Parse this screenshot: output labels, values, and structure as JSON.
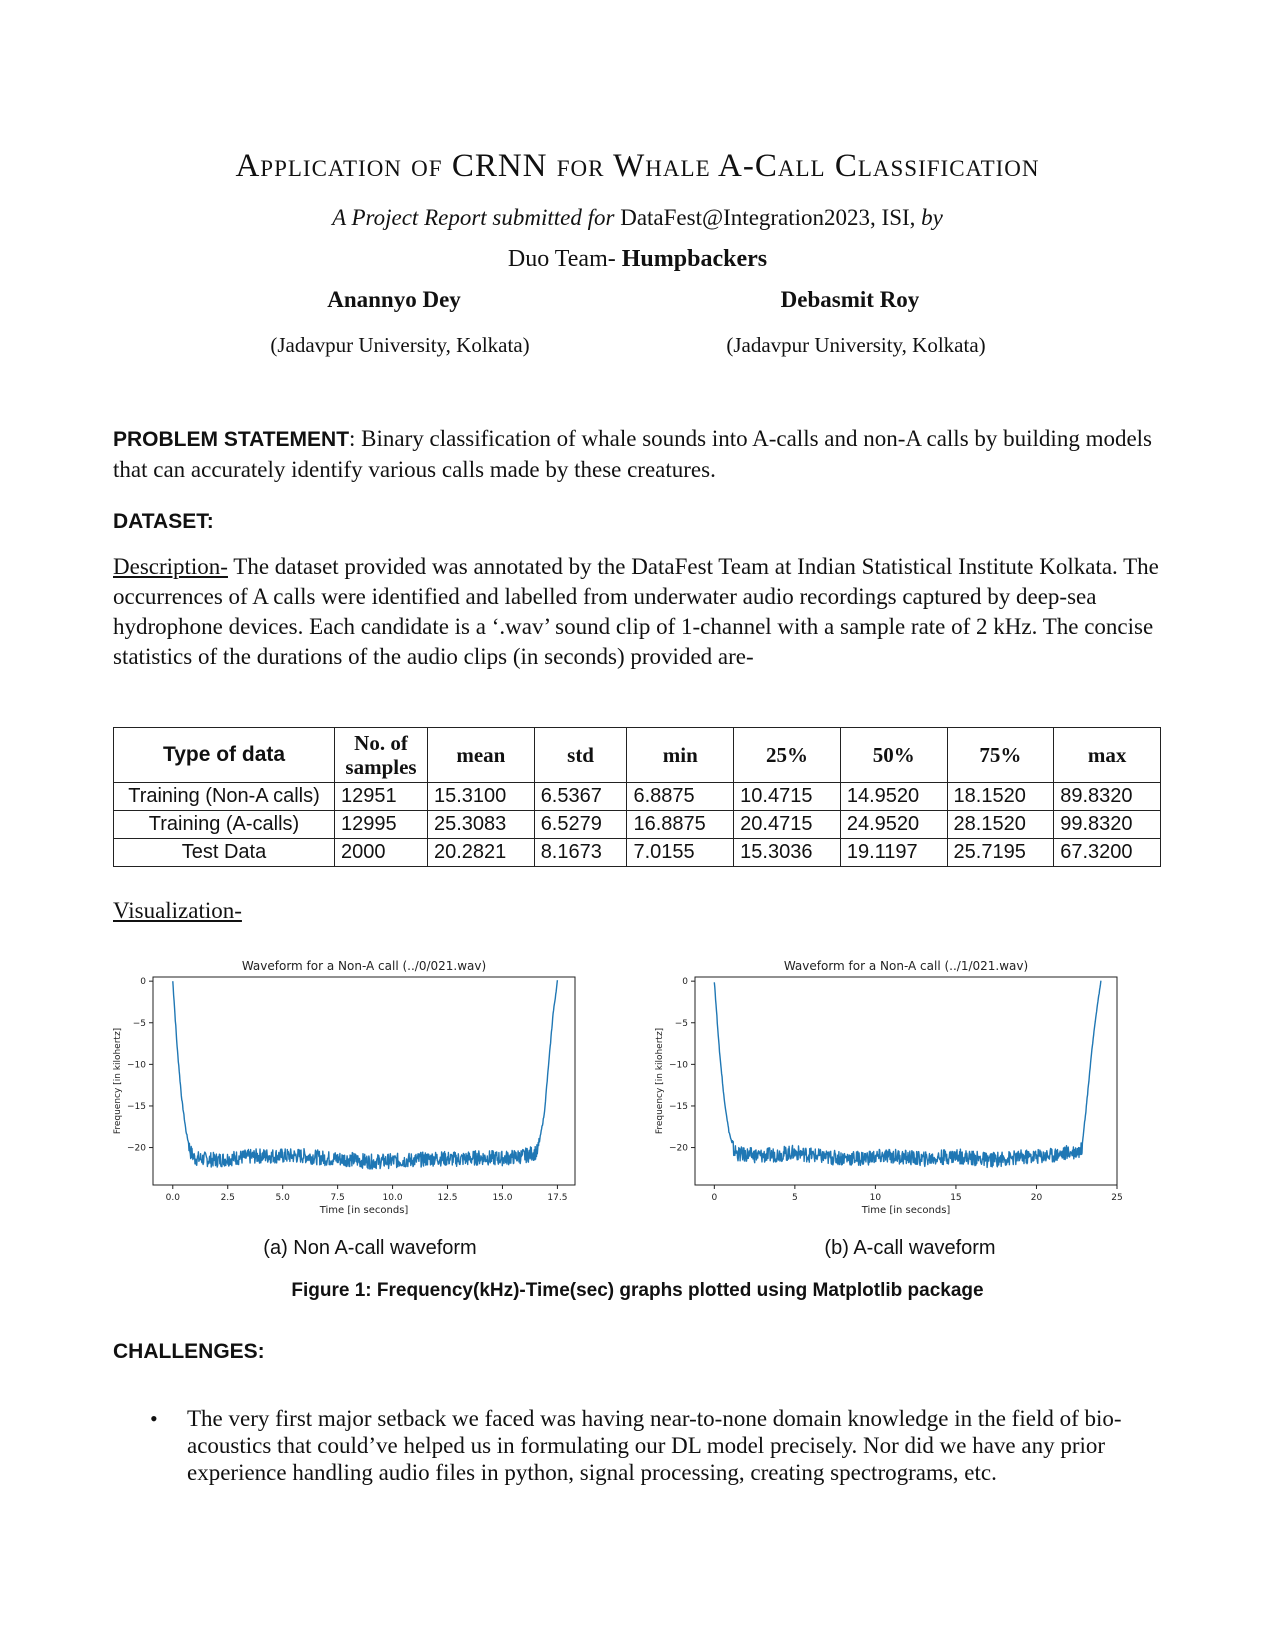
{
  "title": "Application of CRNN for Whale A-Call Classification",
  "subtitle": {
    "italic": "A Project Report submitted for",
    "plain": "DataFest@Integration2023, ISI,",
    "italic2": "by"
  },
  "team": {
    "prefix": "Duo Team-",
    "name": "Humpbackers"
  },
  "authors": [
    {
      "name": "Anannyo Dey",
      "affiliation": "(Jadavpur University, Kolkata)"
    },
    {
      "name": "Debasmit Roy",
      "affiliation": "(Jadavpur University, Kolkata)"
    }
  ],
  "problem": {
    "heading": "PROBLEM STATEMENT",
    "text": ": Binary classification of whale sounds into A-calls and non-A calls by building models that can accurately identify various calls made by these creatures."
  },
  "dataset": {
    "heading": "DATASET:",
    "desc_label": "Description-",
    "desc_text": " The dataset provided was annotated by the DataFest Team at Indian Statistical Institute Kolkata. The occurrences of A calls were identified and labelled from underwater audio recordings captured by deep-sea hydrophone devices. Each candidate is a ‘.wav’ sound clip of 1-channel with a sample rate of 2 kHz. The concise statistics of the durations of the audio clips (in seconds) provided are-"
  },
  "table": {
    "headers": [
      "Type of data",
      "No. of samples",
      "mean",
      "std",
      "min",
      "25%",
      "50%",
      "75%",
      "max"
    ],
    "rows": [
      [
        "Training (Non-A calls)",
        "12951",
        "15.3100",
        "6.5367",
        "6.8875",
        "10.4715",
        "14.9520",
        "18.1520",
        "89.8320"
      ],
      [
        "Training (A-calls)",
        "12995",
        "25.3083",
        "6.5279",
        "16.8875",
        "20.4715",
        "24.9520",
        "28.1520",
        "99.8320"
      ],
      [
        "Test Data",
        "2000",
        "20.2821",
        "8.1673",
        "7.0155",
        "15.3036",
        "19.1197",
        "25.7195",
        "67.3200"
      ]
    ]
  },
  "visualization_label": "Visualization-",
  "figure": {
    "caption": "Figure 1: Frequency(kHz)-Time(sec) graphs plotted using Matplotlib package",
    "sub_captions": [
      "(a) Non A-call waveform",
      "(b) A-call waveform"
    ]
  },
  "chart_data": [
    {
      "type": "line",
      "title": "Waveform for a Non-A call (../0/021.wav)",
      "xlabel": "Time [in seconds]",
      "ylabel": "Frequency [in kilohertz]",
      "xlim": [
        -0.9,
        18.3
      ],
      "ylim": [
        -24.5,
        0.5
      ],
      "xticks": [
        0.0,
        2.5,
        5.0,
        7.5,
        10.0,
        12.5,
        15.0,
        17.5
      ],
      "xtick_labels": [
        "0.0",
        "2.5",
        "5.0",
        "7.5",
        "10.0",
        "12.5",
        "15.0",
        "17.5"
      ],
      "yticks": [
        0,
        -5,
        -10,
        -15,
        -20
      ],
      "ytick_labels": [
        "0",
        "−5",
        "−10",
        "−15",
        "−20"
      ],
      "series": [
        {
          "color": "#1f77b4",
          "x": [
            0.0,
            0.2,
            0.4,
            0.6,
            0.8,
            1.0,
            2.0,
            3.0,
            4.0,
            5.0,
            6.0,
            7.0,
            8.0,
            9.0,
            10.0,
            11.0,
            12.0,
            13.0,
            14.0,
            15.0,
            16.0,
            16.6,
            16.9,
            17.1,
            17.3,
            17.5
          ],
          "y": [
            0,
            -8,
            -14,
            -18,
            -20.5,
            -21.3,
            -21.5,
            -21.2,
            -21.0,
            -21.0,
            -21.0,
            -21.3,
            -21.4,
            -21.7,
            -21.6,
            -21.5,
            -21.3,
            -21.4,
            -21.2,
            -21.3,
            -21.0,
            -20.5,
            -16,
            -10,
            -4,
            0
          ],
          "noise_amplitude": 0.9
        }
      ]
    },
    {
      "type": "line",
      "title": "Waveform for a Non-A call (../1/021.wav)",
      "xlabel": "Time [in seconds]",
      "ylabel": "Frequency [in kilohertz]",
      "xlim": [
        -1.2,
        25
      ],
      "ylim": [
        -24.5,
        0.5
      ],
      "xticks": [
        0,
        5,
        10,
        15,
        20,
        25
      ],
      "xtick_labels": [
        "0",
        "5",
        "10",
        "15",
        "20",
        "25"
      ],
      "yticks": [
        0,
        -5,
        -10,
        -15,
        -20
      ],
      "ytick_labels": [
        "0",
        "−5",
        "−10",
        "−15",
        "−20"
      ],
      "series": [
        {
          "color": "#1f77b4",
          "x": [
            0.0,
            0.3,
            0.6,
            0.9,
            1.2,
            1.5,
            3.0,
            5.0,
            7.0,
            9.0,
            11.0,
            13.0,
            15.0,
            17.0,
            19.0,
            21.0,
            22.0,
            22.8,
            23.1,
            23.4,
            23.7,
            24.0
          ],
          "y": [
            0,
            -8,
            -14,
            -18,
            -20.3,
            -20.8,
            -21.0,
            -20.6,
            -21.2,
            -21.3,
            -21.0,
            -21.4,
            -21.0,
            -21.5,
            -21.2,
            -20.9,
            -20.6,
            -20.3,
            -15,
            -9,
            -4,
            0
          ],
          "noise_amplitude": 0.9
        }
      ]
    }
  ],
  "challenges": {
    "heading": "CHALLENGES:",
    "bullet_symbol": "•",
    "items": [
      "The very first major setback we faced was having near-to-none domain knowledge in the field of bio-acoustics that could’ve helped us in formulating our DL model precisely. Nor did we have any prior experience handling audio files in python, signal processing, creating spectrograms, etc."
    ]
  }
}
